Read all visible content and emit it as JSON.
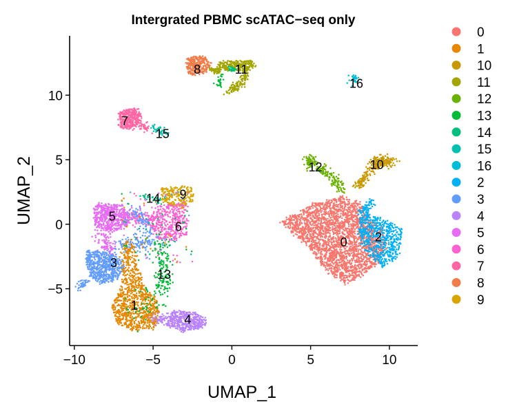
{
  "chart_data": {
    "type": "scatter",
    "title": "Intergrated PBMC scATAC−seq only",
    "xlabel": "UMAP_1",
    "ylabel": "UMAP_2",
    "xlim": [
      -10.3,
      11.8
    ],
    "ylim": [
      -9.4,
      14.6
    ],
    "x_ticks": [
      -10,
      -5,
      0,
      5,
      10
    ],
    "y_ticks": [
      -5,
      0,
      5,
      10
    ],
    "x_tick_labels": [
      "−10",
      "−5",
      "0",
      "5",
      "10"
    ],
    "y_tick_labels": [
      "−5",
      "0",
      "5",
      "10"
    ],
    "grid": false,
    "legend_position": "right",
    "clusters": [
      {
        "name": "0",
        "color": "#F8766D",
        "label_x": 7.1,
        "label_y": -1.4
      },
      {
        "name": "1",
        "color": "#E58700",
        "label_x": -6.2,
        "label_y": -6.3
      },
      {
        "name": "10",
        "color": "#C99800",
        "label_x": 9.2,
        "label_y": 4.6
      },
      {
        "name": "11",
        "color": "#A3A500",
        "label_x": 0.6,
        "label_y": 12.0
      },
      {
        "name": "12",
        "color": "#6BB100",
        "label_x": 5.3,
        "label_y": 4.4
      },
      {
        "name": "13",
        "color": "#00BA38",
        "label_x": -4.3,
        "label_y": -3.9
      },
      {
        "name": "14",
        "color": "#00BF7D",
        "label_x": -5.0,
        "label_y": 2.0
      },
      {
        "name": "15",
        "color": "#00C0AF",
        "label_x": -4.4,
        "label_y": 7.0
      },
      {
        "name": "16",
        "color": "#00BCD8",
        "label_x": 7.9,
        "label_y": 10.9
      },
      {
        "name": "2",
        "color": "#00B0F6",
        "label_x": 9.3,
        "label_y": -1.0
      },
      {
        "name": "3",
        "color": "#619CFF",
        "label_x": -7.5,
        "label_y": -3.0
      },
      {
        "name": "4",
        "color": "#B983FF",
        "label_x": -2.8,
        "label_y": -7.4
      },
      {
        "name": "5",
        "color": "#E76BF3",
        "label_x": -7.6,
        "label_y": 0.6
      },
      {
        "name": "6",
        "color": "#FD61D1",
        "label_x": -3.4,
        "label_y": -0.2
      },
      {
        "name": "7",
        "color": "#FF67A4",
        "label_x": -6.8,
        "label_y": 8.0
      },
      {
        "name": "8",
        "color": "#F07C4A",
        "label_x": -2.2,
        "label_y": 12.0
      },
      {
        "name": "9",
        "color": "#D9A400",
        "label_x": -3.1,
        "label_y": 2.3
      }
    ]
  },
  "legend": {
    "entries": [
      {
        "label": "0",
        "color": "#F8766D"
      },
      {
        "label": "1",
        "color": "#E58700"
      },
      {
        "label": "10",
        "color": "#C99800"
      },
      {
        "label": "11",
        "color": "#A3A500"
      },
      {
        "label": "12",
        "color": "#6BB100"
      },
      {
        "label": "13",
        "color": "#00BA38"
      },
      {
        "label": "14",
        "color": "#00BF7D"
      },
      {
        "label": "15",
        "color": "#00C0AF"
      },
      {
        "label": "16",
        "color": "#00BCD8"
      },
      {
        "label": "2",
        "color": "#00B0F6"
      },
      {
        "label": "3",
        "color": "#619CFF"
      },
      {
        "label": "4",
        "color": "#B983FF"
      },
      {
        "label": "5",
        "color": "#E76BF3"
      },
      {
        "label": "6",
        "color": "#FD61D1"
      },
      {
        "label": "7",
        "color": "#FF67A4"
      },
      {
        "label": "8",
        "color": "#F07C4A"
      },
      {
        "label": "9",
        "color": "#D9A400"
      }
    ]
  }
}
